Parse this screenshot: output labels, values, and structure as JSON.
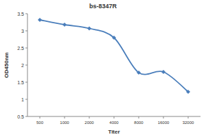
{
  "chart_data": {
    "type": "line",
    "title": "bs-8347R",
    "x_label": "Titer",
    "y_label": "OD450nm",
    "categories": [
      "500",
      "1000",
      "2000",
      "4000",
      "8000",
      "16000",
      "32000"
    ],
    "values": [
      3.32,
      3.18,
      3.07,
      2.8,
      1.78,
      1.8,
      1.22
    ],
    "color": "#4a7ebb",
    "marker": "diamond",
    "line_style": "smooth",
    "ylim": [
      0.5,
      3.5
    ],
    "yticks": [
      0.5,
      1,
      1.5,
      2,
      2.5,
      3,
      3.5
    ],
    "grid": false
  }
}
